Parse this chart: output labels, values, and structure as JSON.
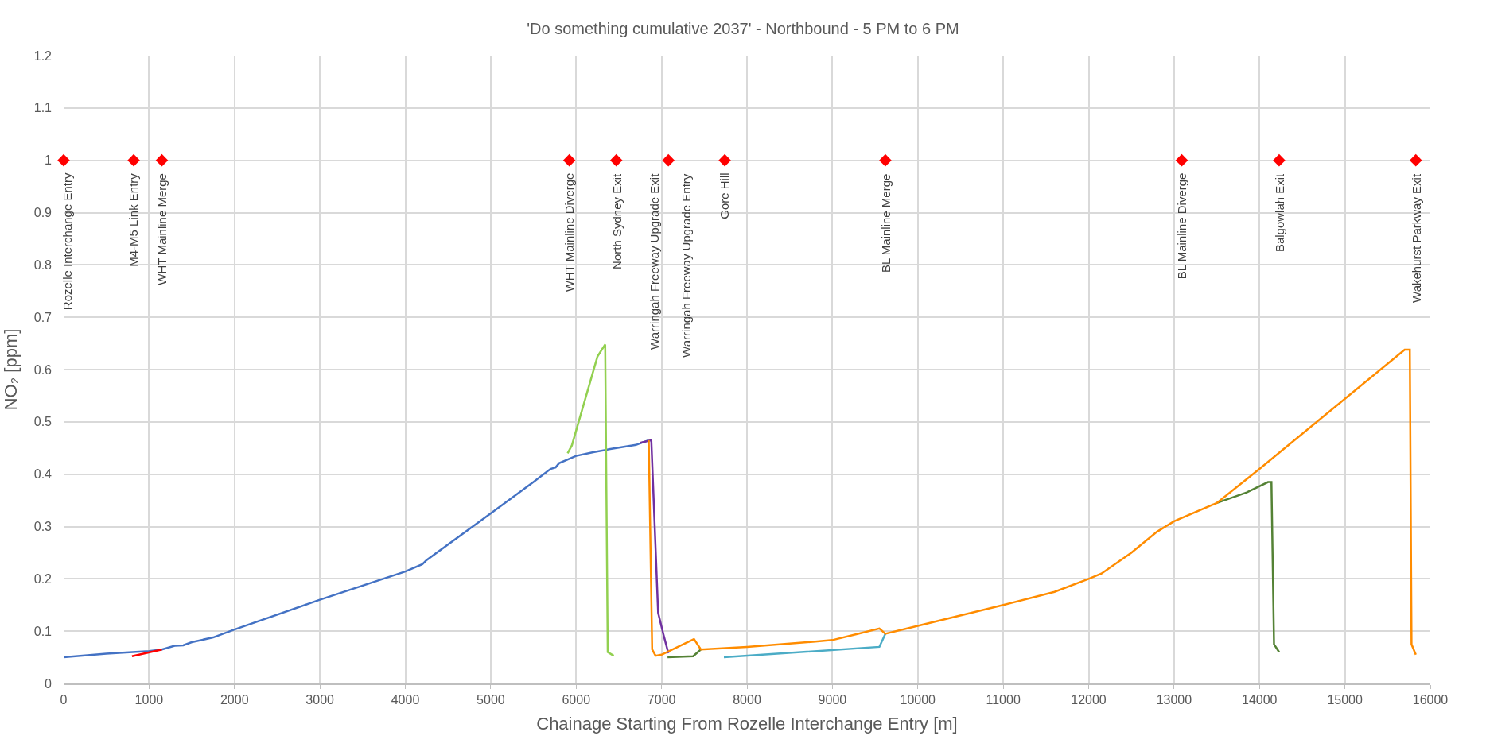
{
  "chart_data": {
    "type": "line",
    "title": "'Do something cumulative 2037' - Northbound - 5 PM to 6 PM",
    "xlabel": "Chainage Starting From Rozelle Interchange Entry [m]",
    "ylabel": "NO₂ [ppm]",
    "xlim": [
      0,
      16000
    ],
    "xticks": [
      0,
      1000,
      2000,
      3000,
      4000,
      5000,
      6000,
      7000,
      8000,
      9000,
      10000,
      11000,
      12000,
      13000,
      14000,
      15000,
      16000
    ],
    "ylim": [
      0,
      1.2
    ],
    "yticks": [
      0,
      0.1,
      0.2,
      0.3,
      0.4,
      0.5,
      0.6,
      0.7,
      0.8,
      0.9,
      1,
      1.1,
      1.2
    ],
    "grid": true,
    "line_style": "solid",
    "marker": "none",
    "series": [
      {
        "color": "#4472c4",
        "x": [
          0,
          500,
          1000,
          1150,
          1300,
          1400,
          1500,
          1750,
          2000,
          3000,
          4000,
          4200,
          4250,
          5000,
          5500,
          5700,
          5760,
          5800,
          6000,
          6200,
          6400,
          6700,
          6850
        ],
        "values": [
          0.05,
          0.057,
          0.062,
          0.065,
          0.072,
          0.073,
          0.079,
          0.088,
          0.103,
          0.16,
          0.214,
          0.228,
          0.236,
          0.325,
          0.385,
          0.41,
          0.413,
          0.421,
          0.435,
          0.442,
          0.448,
          0.456,
          0.465
        ]
      },
      {
        "color": "#ff0000",
        "x": [
          800,
          1150
        ],
        "values": [
          0.052,
          0.065
        ]
      },
      {
        "color": "#92d050",
        "x": [
          5900,
          5950,
          6250,
          6340,
          6370,
          6440
        ],
        "values": [
          0.44,
          0.455,
          0.625,
          0.648,
          0.06,
          0.053
        ]
      },
      {
        "color": "#7030a0",
        "x": [
          6750,
          6880,
          6960,
          7020,
          7080
        ],
        "values": [
          0.46,
          0.465,
          0.135,
          0.095,
          0.058
        ]
      },
      {
        "color": "#548235",
        "x": [
          7070,
          7370,
          7460
        ],
        "values": [
          0.05,
          0.052,
          0.065
        ]
      },
      {
        "color": "#4bacc6",
        "x": [
          7730,
          9550,
          9620
        ],
        "values": [
          0.05,
          0.07,
          0.095
        ]
      },
      {
        "color": "#548235",
        "x": [
          13500,
          13850,
          14100,
          14140,
          14170,
          14230
        ],
        "values": [
          0.345,
          0.365,
          0.385,
          0.385,
          0.075,
          0.06
        ]
      },
      {
        "color": "#ff8c00",
        "x": [
          6850,
          6890,
          6930,
          7000,
          7380,
          7460,
          8000,
          8800,
          9000,
          9300,
          9550,
          9620,
          10000,
          11000,
          11600,
          12000,
          12150,
          12500,
          12800,
          13000,
          13500,
          14000,
          15700,
          15760,
          15780,
          15830
        ],
        "values": [
          0.465,
          0.065,
          0.053,
          0.055,
          0.085,
          0.065,
          0.07,
          0.08,
          0.083,
          0.095,
          0.105,
          0.095,
          0.11,
          0.15,
          0.175,
          0.2,
          0.21,
          0.25,
          0.29,
          0.31,
          0.345,
          0.41,
          0.638,
          0.638,
          0.075,
          0.055
        ]
      },
      {
        "type": "scatter",
        "marker": "diamond",
        "color": "#ff0000",
        "x": [
          0,
          820,
          1150,
          5920,
          6470,
          7080,
          7740,
          9620,
          13090,
          14230,
          15830
        ],
        "values": [
          1,
          1,
          1,
          1,
          1,
          1,
          1,
          1,
          1,
          1,
          1
        ]
      }
    ],
    "annotations": [
      {
        "text": "Rozelle Interchange Entry",
        "x": 0,
        "y": 1
      },
      {
        "text": "M4-M5 Link Entry",
        "x": 820,
        "y": 1
      },
      {
        "text": "WHT Mainline Merge",
        "x": 1150,
        "y": 1
      },
      {
        "text": "WHT Mainline Diverge",
        "x": 5920,
        "y": 1
      },
      {
        "text": "North Sydney Exit",
        "x": 6470,
        "y": 1
      },
      {
        "text": "Warringah Freeway Upgrade Exit",
        "x": 7080,
        "y": 1
      },
      {
        "text": "Warringah Freeway Upgrade Entry",
        "x": 7080,
        "y": 1
      },
      {
        "text": "Gore Hill",
        "x": 7740,
        "y": 1
      },
      {
        "text": "BL Mainline Merge",
        "x": 9620,
        "y": 1
      },
      {
        "text": "BL Mainline Diverge",
        "x": 13090,
        "y": 1
      },
      {
        "text": "Balgowlah Exit",
        "x": 14230,
        "y": 1
      },
      {
        "text": "Wakehurst Parkway Exit",
        "x": 15830,
        "y": 1
      }
    ]
  }
}
